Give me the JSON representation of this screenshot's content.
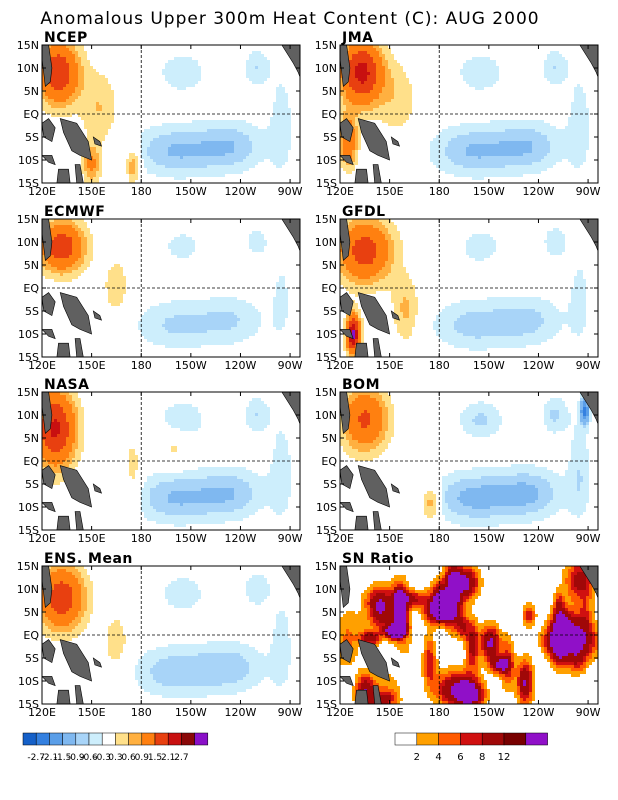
{
  "title": "Anomalous Upper 300m Heat Content (C): AUG 2000",
  "lat_labels": [
    "15N",
    "10N",
    "5N",
    "EQ",
    "5S",
    "10S",
    "15S"
  ],
  "lon_labels": [
    "120E",
    "150E",
    "180",
    "150W",
    "120W",
    "90W"
  ],
  "panels": [
    {
      "name": "NCEP"
    },
    {
      "name": "JMA"
    },
    {
      "name": "ECMWF"
    },
    {
      "name": "GFDL"
    },
    {
      "name": "NASA"
    },
    {
      "name": "BOM"
    },
    {
      "name": "ENS. Mean"
    },
    {
      "name": "SN Ratio"
    }
  ],
  "colorbar_anomaly": {
    "colors": [
      "#1560c8",
      "#3480e0",
      "#5a9ee8",
      "#7fb8f0",
      "#a8d4f8",
      "#cdeefc",
      "#ffffff",
      "#ffe08a",
      "#ffb040",
      "#ff8010",
      "#e84010",
      "#c81010",
      "#8a0808",
      "#8a10c8"
    ],
    "labels": [
      "-2.7",
      "-2.1",
      "-1.5",
      "-0.9",
      "-0.6",
      "-0.3",
      "0.3",
      "0.6",
      "0.9",
      "1.5",
      "2.1",
      "2.7"
    ]
  },
  "colorbar_sn": {
    "colors": [
      "#ffffff",
      "#ffa000",
      "#ff5a00",
      "#d01010",
      "#a00808",
      "#780000",
      "#9010c8"
    ],
    "labels": [
      "2",
      "4",
      "6",
      "8",
      "12"
    ]
  }
}
